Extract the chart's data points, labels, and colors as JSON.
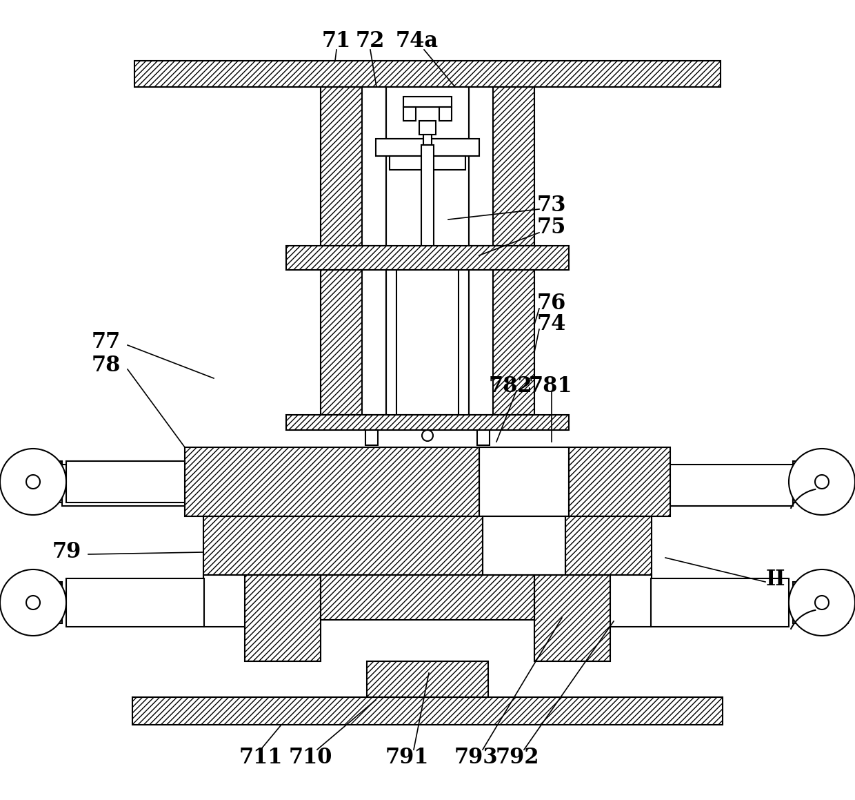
{
  "bg_color": "#ffffff",
  "lw": 1.5,
  "fs": 22
}
